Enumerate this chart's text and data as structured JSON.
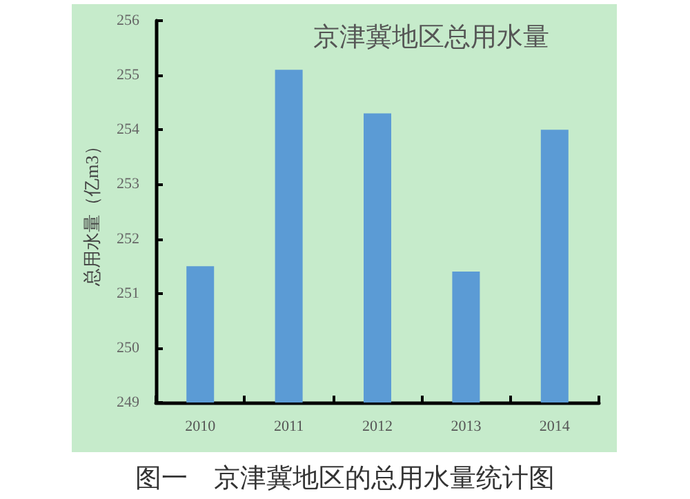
{
  "chart_data": {
    "type": "bar",
    "title": "京津冀地区总用水量",
    "ylabel": "总用水量（亿m3）",
    "categories": [
      "2010",
      "2011",
      "2012",
      "2013",
      "2014"
    ],
    "values": [
      251.5,
      255.1,
      254.3,
      251.4,
      254.0
    ],
    "color": "#5b9bd5",
    "ylim": [
      249,
      256
    ],
    "yticks": [
      249,
      250,
      251,
      252,
      253,
      254,
      255,
      256
    ],
    "grid": false,
    "annotations": [
      "图一　京津冀地区的总用水量统计图"
    ]
  }
}
